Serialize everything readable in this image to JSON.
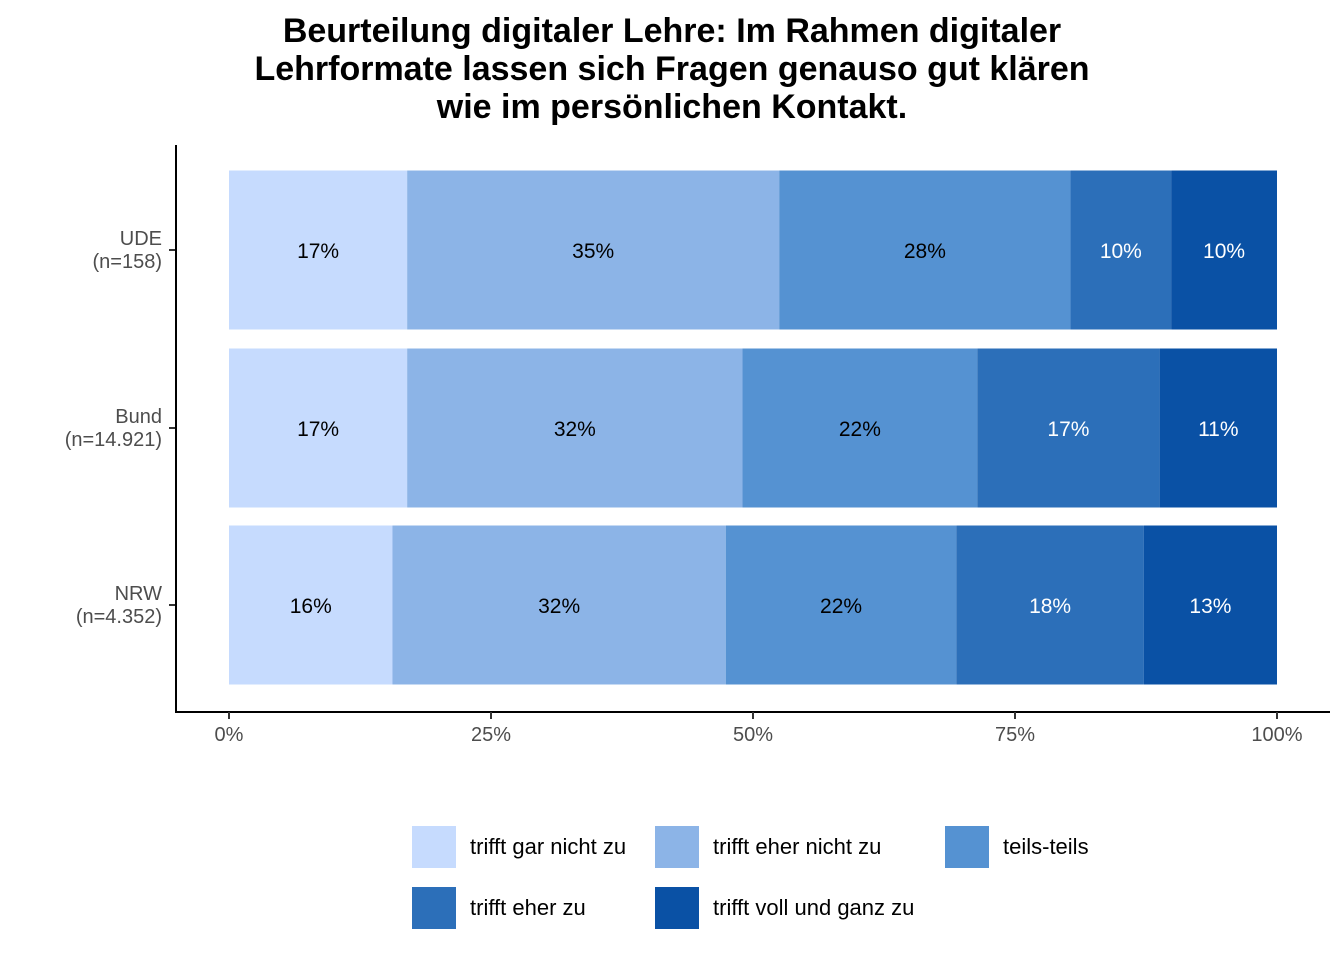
{
  "chart_data": {
    "type": "bar",
    "orientation": "horizontal",
    "stacked": true,
    "title": "Beurteilung digitaler Lehre: Im Rahmen digitaler Lehrformate lassen sich Fragen genauso gut klären wie im persönlichen Kontakt.",
    "title_lines": [
      "Beurteilung digitaler Lehre: Im Rahmen digitaler",
      "Lehrformate lassen sich Fragen genauso gut klären",
      "wie im persönlichen Kontakt."
    ],
    "categories": [
      {
        "name": "UDE",
        "n": "(n=158)"
      },
      {
        "name": "Bund",
        "n": "(n=14.921)"
      },
      {
        "name": "NRW",
        "n": "(n=4.352)"
      }
    ],
    "series": [
      {
        "name": "trifft gar nicht zu",
        "color": "#c6dbfe",
        "label_color": "#000000",
        "values": [
          0.17,
          0.17,
          0.156
        ],
        "labels": [
          "17%",
          "17%",
          "16%"
        ]
      },
      {
        "name": "trifft eher nicht zu",
        "color": "#8cb4e7",
        "label_color": "#000000",
        "values": [
          0.355,
          0.32,
          0.318
        ],
        "labels": [
          "35%",
          "32%",
          "32%"
        ]
      },
      {
        "name": "teils-teils",
        "color": "#5592d2",
        "label_color": "#000000",
        "values": [
          0.278,
          0.224,
          0.22
        ],
        "labels": [
          "28%",
          "22%",
          "22%"
        ]
      },
      {
        "name": "trifft eher zu",
        "color": "#2c6fb9",
        "label_color": "#ffffff",
        "values": [
          0.096,
          0.174,
          0.179
        ],
        "labels": [
          "10%",
          "17%",
          "18%"
        ]
      },
      {
        "name": "trifft voll und ganz zu",
        "color": "#0a51a5",
        "label_color": "#ffffff",
        "values": [
          0.101,
          0.112,
          0.127
        ],
        "labels": [
          "10%",
          "11%",
          "13%"
        ]
      }
    ],
    "x_ticks": [
      0,
      0.25,
      0.5,
      0.75,
      1.0
    ],
    "x_tick_labels": [
      "0%",
      "25%",
      "50%",
      "75%",
      "100%"
    ],
    "xlim": [
      0,
      1
    ],
    "grid": false,
    "legend_position": "bottom"
  }
}
